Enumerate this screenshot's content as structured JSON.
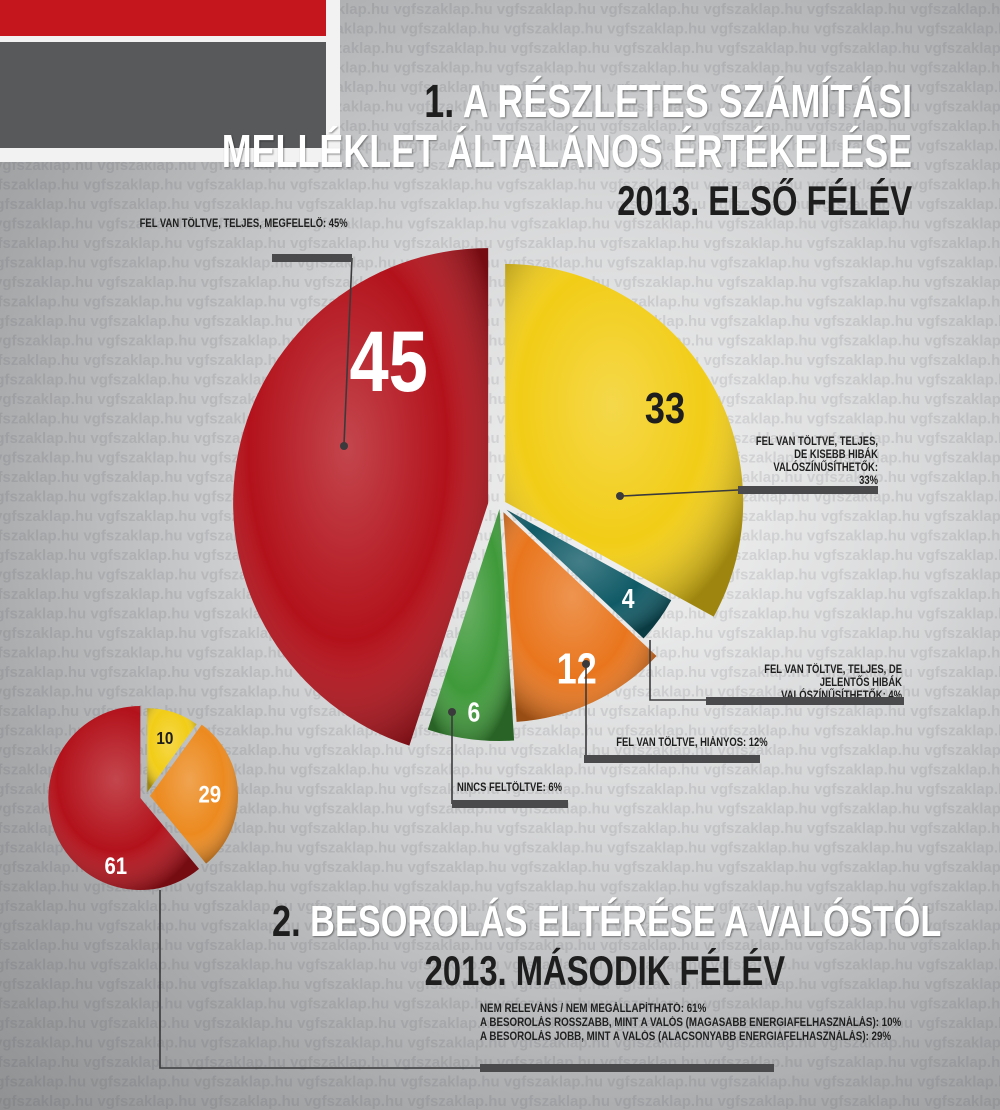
{
  "watermark": "vgfszaklap.hu",
  "section1": {
    "number": "1.",
    "title_line1": "A részletes számítási",
    "title_line2": "melléklet általános értékelése",
    "subtitle": "2013. első félév"
  },
  "section2": {
    "number": "2.",
    "title": "Besorolás eltérése a valóstól",
    "subtitle": "2013. második félév"
  },
  "chart_data": [
    {
      "type": "pie",
      "title": "1. A részletes számítási melléklet általános értékelése",
      "subtitle": "2013. első félév",
      "slices": [
        {
          "label": "Fel van töltve, teljes, megfelelő: 45%",
          "value": 45,
          "color": "#b3121b"
        },
        {
          "label": "Fel van töltve, teljes, de kisebb hibák valószínűsíthetők: 33%",
          "value": 33,
          "color": "#f2cd17"
        },
        {
          "label": "Fel van töltve, teljes, de jelentős hibák valószínűsíthetők: 4%",
          "value": 4,
          "color": "#0f5a66"
        },
        {
          "label": "Fel van töltve, hiányos: 12%",
          "value": 12,
          "color": "#e9761e"
        },
        {
          "label": "Nincs feltöltve: 6%",
          "value": 6,
          "color": "#3f9a3a"
        }
      ]
    },
    {
      "type": "pie",
      "title": "2. Besorolás eltérése a valóstól",
      "subtitle": "2013. második félév",
      "slices": [
        {
          "label": "Nem releváns / nem megállapítható: 61%",
          "value": 61,
          "color": "#b3121b"
        },
        {
          "label": "A besorolás rosszabb, mint a valós (magasabb energiafelhasználás): 10%",
          "value": 10,
          "color": "#f2cd17"
        },
        {
          "label": "A besorolás jobb, mint a valós (alacsonyabb energiafelhasználás): 29%",
          "value": 29,
          "color": "#ec8a1f"
        }
      ]
    }
  ],
  "colors": {
    "red": "#b3121b",
    "yellow": "#f2cd17",
    "teal": "#0f5a66",
    "orange": "#e9761e",
    "green": "#3f9a3a",
    "dark_bar": "#4a4a4c",
    "logo_red": "#c4161c",
    "logo_gray": "#58595b"
  }
}
